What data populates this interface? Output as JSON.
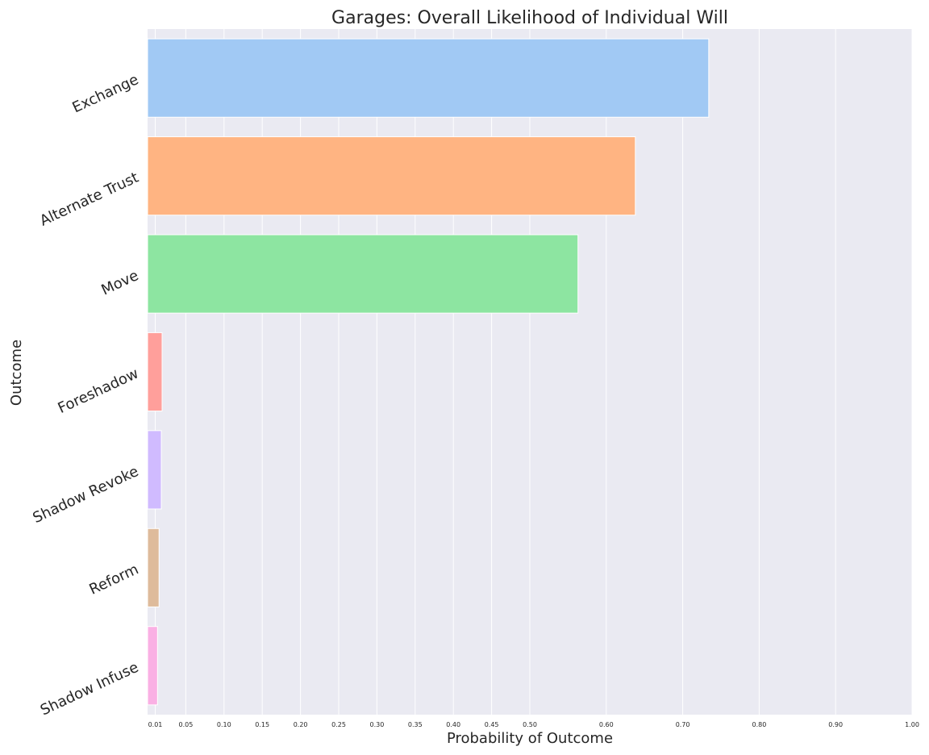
{
  "chart_data": {
    "type": "bar",
    "orientation": "horizontal",
    "title": "Garages: Overall Likelihood of Individual Will",
    "xlabel": "Probability of Outcome",
    "ylabel": "Outcome",
    "xlim": [
      0,
      1.0
    ],
    "x_ticks": [
      0.01,
      0.05,
      0.1,
      0.15,
      0.2,
      0.25,
      0.3,
      0.35,
      0.4,
      0.45,
      0.5,
      0.6,
      0.7,
      0.8,
      0.9,
      1.0
    ],
    "x_tick_labels": [
      "0.01",
      "0.05",
      "0.10",
      "0.15",
      "0.20",
      "0.25",
      "0.30",
      "0.35",
      "0.40",
      "0.45",
      "0.50",
      "0.60",
      "0.70",
      "0.80",
      "0.90",
      "1.00"
    ],
    "categories": [
      "Exchange",
      "Alternate Trust",
      "Move",
      "Foreshadow",
      "Shadow Revoke",
      "Reform",
      "Shadow Infuse"
    ],
    "values": [
      0.734,
      0.638,
      0.563,
      0.019,
      0.018,
      0.015,
      0.013
    ],
    "colors": [
      "#a1c9f4",
      "#ffb482",
      "#8de5a1",
      "#ff9f9b",
      "#d0bbff",
      "#debb9b",
      "#fab0e4"
    ],
    "grid": true,
    "background": "#eaeaf2",
    "legend": "none"
  }
}
